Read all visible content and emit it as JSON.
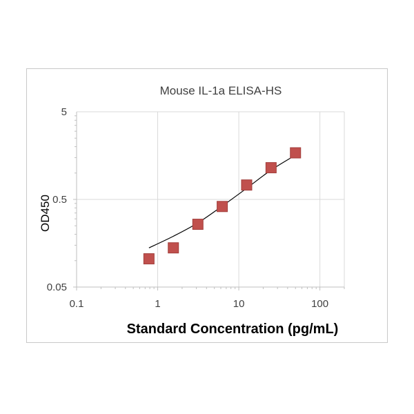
{
  "chart_data": {
    "type": "scatter",
    "title": "Mouse IL-1a ELISA-HS",
    "xlabel": "Standard Concentration (pg/mL)",
    "ylabel": "OD450",
    "x_scale": "log",
    "y_scale": "log",
    "xlim": [
      0.1,
      200
    ],
    "ylim": [
      0.05,
      5
    ],
    "x_ticks": [
      "0.1",
      "1",
      "10",
      "100"
    ],
    "y_ticks": [
      "0.05",
      "0.5",
      "5"
    ],
    "grid": true,
    "legend": "none",
    "series": [
      {
        "marker": "square",
        "color": "#c0504d",
        "x": [
          0.78,
          1.56,
          3.13,
          6.25,
          12.5,
          25,
          50
        ],
        "y": [
          0.105,
          0.14,
          0.26,
          0.415,
          0.73,
          1.15,
          1.7
        ]
      }
    ],
    "fit_curve": {
      "color": "#000000",
      "x": [
        0.78,
        1.56,
        3.13,
        6.25,
        12.5,
        25,
        50
      ],
      "y": [
        0.14,
        0.19,
        0.27,
        0.42,
        0.67,
        1.08,
        1.6
      ]
    }
  }
}
